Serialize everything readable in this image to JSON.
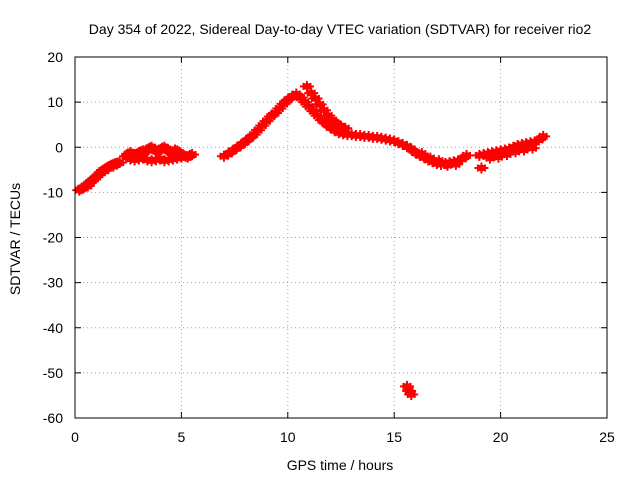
{
  "chart_data": {
    "type": "scatter",
    "title": "Day 354 of 2022, Sidereal Day-to-day VTEC variation (SDTVAR) for receiver rio2",
    "xlabel": "GPS time / hours",
    "ylabel": "SDTVAR / TECUs",
    "xlim": [
      0,
      25
    ],
    "ylim": [
      -60,
      20
    ],
    "xticks": [
      0,
      5,
      10,
      15,
      20,
      25
    ],
    "yticks": [
      -60,
      -50,
      -40,
      -30,
      -20,
      -10,
      0,
      10,
      20
    ],
    "grid": true,
    "marker_color": "#ff0000",
    "series": [
      {
        "name": "SDTVAR",
        "x": [
          0.2,
          0.3,
          0.4,
          0.5,
          0.6,
          0.7,
          0.8,
          0.9,
          1.0,
          1.1,
          1.2,
          1.3,
          1.4,
          1.5,
          1.6,
          1.7,
          1.8,
          1.9,
          2.0,
          2.1,
          2.4,
          2.5,
          2.6,
          2.7,
          2.8,
          2.9,
          3.0,
          3.1,
          3.2,
          3.3,
          3.4,
          3.5,
          3.6,
          3.7,
          3.8,
          3.9,
          4.0,
          4.1,
          4.2,
          4.3,
          4.4,
          4.5,
          4.6,
          4.7,
          4.8,
          4.9,
          5.0,
          5.1,
          5.2,
          5.3,
          5.4,
          5.5,
          2.6,
          2.8,
          3.0,
          3.2,
          3.4,
          3.6,
          3.8,
          4.0,
          4.2,
          4.4,
          4.6,
          4.8,
          5.0,
          7.0,
          7.2,
          7.4,
          7.6,
          7.8,
          8.0,
          8.2,
          8.4,
          8.6,
          8.8,
          9.0,
          9.2,
          9.4,
          9.6,
          9.8,
          10.0,
          10.2,
          10.4,
          10.6,
          10.8,
          11.0,
          11.2,
          11.4,
          11.6,
          11.8,
          12.0,
          12.2,
          12.4,
          12.6,
          12.8,
          13.0,
          13.2,
          13.4,
          13.6,
          13.8,
          14.0,
          14.2,
          14.4,
          14.6,
          14.8,
          15.0,
          15.2,
          15.4,
          15.6,
          15.8,
          16.0,
          10.9,
          11.1,
          11.3,
          11.5,
          11.7,
          11.9,
          12.1,
          12.3,
          12.5,
          12.7,
          16.2,
          16.4,
          16.6,
          16.8,
          17.0,
          17.2,
          17.4,
          17.6,
          17.8,
          18.0,
          18.2,
          18.4,
          16.3,
          16.7,
          17.1,
          17.5,
          17.9,
          15.6,
          15.7,
          15.8,
          19.0,
          19.2,
          19.4,
          19.6,
          19.8,
          20.0,
          20.2,
          20.4,
          20.6,
          20.8,
          21.0,
          21.2,
          21.4,
          21.6,
          21.8,
          22.0,
          19.1,
          19.5,
          19.9,
          20.3,
          20.7,
          21.1,
          21.5,
          1.0,
          1.4,
          1.8,
          0.6
        ],
        "y": [
          -9.5,
          -9.2,
          -9.0,
          -8.6,
          -8.2,
          -7.8,
          -7.4,
          -7.0,
          -6.6,
          -6.1,
          -5.6,
          -5.2,
          -4.9,
          -4.6,
          -4.3,
          -4.0,
          -3.8,
          -3.6,
          -3.5,
          -3.4,
          -2.0,
          -1.5,
          -1.2,
          -1.5,
          -1.8,
          -1.6,
          -1.2,
          -1.0,
          -0.8,
          -1.0,
          -0.6,
          -0.2,
          0.0,
          -0.4,
          -0.8,
          -1.0,
          -0.6,
          -0.2,
          0.0,
          -0.4,
          -0.8,
          -1.2,
          -1.0,
          -0.6,
          -0.8,
          -1.2,
          -1.6,
          -1.8,
          -2.0,
          -2.2,
          -1.8,
          -1.6,
          -2.6,
          -2.8,
          -2.6,
          -2.4,
          -2.8,
          -3.0,
          -2.8,
          -2.6,
          -3.0,
          -2.8,
          -2.6,
          -2.4,
          -2.2,
          -2.0,
          -1.5,
          -0.8,
          -0.2,
          0.5,
          1.2,
          2.0,
          2.8,
          3.8,
          4.8,
          5.8,
          6.8,
          7.6,
          8.6,
          9.6,
          10.5,
          11.2,
          11.8,
          11.0,
          10.0,
          9.0,
          8.0,
          7.0,
          6.0,
          5.2,
          4.4,
          3.8,
          3.2,
          3.0,
          2.8,
          2.8,
          2.6,
          2.6,
          2.4,
          2.4,
          2.2,
          2.2,
          2.0,
          1.8,
          1.6,
          1.4,
          1.0,
          0.6,
          0.2,
          -0.4,
          -1.2,
          13.5,
          12.0,
          10.8,
          9.5,
          8.2,
          7.0,
          6.0,
          5.2,
          4.6,
          4.2,
          -1.8,
          -2.2,
          -2.8,
          -3.2,
          -3.6,
          -3.8,
          -3.6,
          -3.4,
          -3.2,
          -3.0,
          -2.6,
          -1.8,
          -1.4,
          -2.4,
          -3.0,
          -4.0,
          -3.8,
          -53.0,
          -54.0,
          -54.8,
          -1.8,
          -1.6,
          -1.4,
          -1.2,
          -1.0,
          -0.8,
          -0.6,
          -0.4,
          0.0,
          0.4,
          0.6,
          0.8,
          1.0,
          1.2,
          1.6,
          2.4,
          -4.6,
          -2.4,
          -2.2,
          -1.6,
          -1.0,
          -0.6,
          -0.2,
          -6.6,
          -5.2,
          -4.2,
          -8.6
        ]
      }
    ]
  }
}
